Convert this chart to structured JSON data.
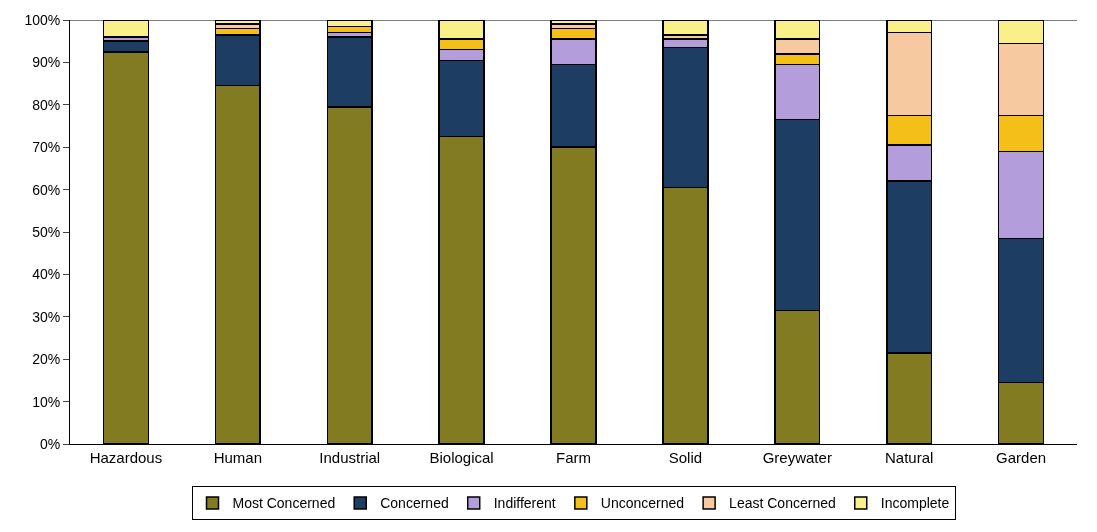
{
  "chart_data": {
    "type": "bar",
    "stacked": true,
    "categories": [
      "Hazardous",
      "Human",
      "Industrial",
      "Biological",
      "Farm",
      "Solid",
      "Greywater",
      "Natural",
      "Garden"
    ],
    "series": [
      {
        "name": "Most Concerned",
        "color": "#827b22",
        "values": [
          92.5,
          84.5,
          79.5,
          72.5,
          70,
          60.5,
          31.5,
          21.5,
          14.5
        ]
      },
      {
        "name": "Concerned",
        "color": "#1d3d63",
        "values": [
          2.5,
          12,
          16.5,
          18,
          19.5,
          33,
          45,
          40.5,
          34
        ]
      },
      {
        "name": "Indifferent",
        "color": "#b39ddb",
        "values": [
          1,
          0,
          1,
          2.5,
          6,
          2,
          13,
          8.5,
          20.5
        ]
      },
      {
        "name": "Unconcerned",
        "color": "#f5bf1a",
        "values": [
          0,
          1.5,
          1.5,
          2.5,
          2.5,
          0,
          2.5,
          7,
          8.5
        ]
      },
      {
        "name": "Least Concerned",
        "color": "#f7c9a0",
        "values": [
          0,
          1,
          0,
          0,
          1,
          1,
          3.5,
          19.5,
          17
        ]
      },
      {
        "name": "Incomplete",
        "color": "#faf08a",
        "values": [
          4,
          1,
          1.5,
          4.5,
          1,
          3.5,
          4.5,
          3,
          5.5
        ]
      }
    ],
    "ylim": [
      0,
      100
    ],
    "yticks": [
      {
        "value": 0,
        "label": "0%"
      },
      {
        "value": 10,
        "label": "10%"
      },
      {
        "value": 20,
        "label": "20%"
      },
      {
        "value": 30,
        "label": "30%"
      },
      {
        "value": 40,
        "label": "40%"
      },
      {
        "value": 50,
        "label": "50%"
      },
      {
        "value": 60,
        "label": "60%"
      },
      {
        "value": 70,
        "label": "70%"
      },
      {
        "value": 80,
        "label": "80%"
      },
      {
        "value": 90,
        "label": "90%"
      },
      {
        "value": 100,
        "label": "100%"
      }
    ],
    "legend": "bottom"
  }
}
